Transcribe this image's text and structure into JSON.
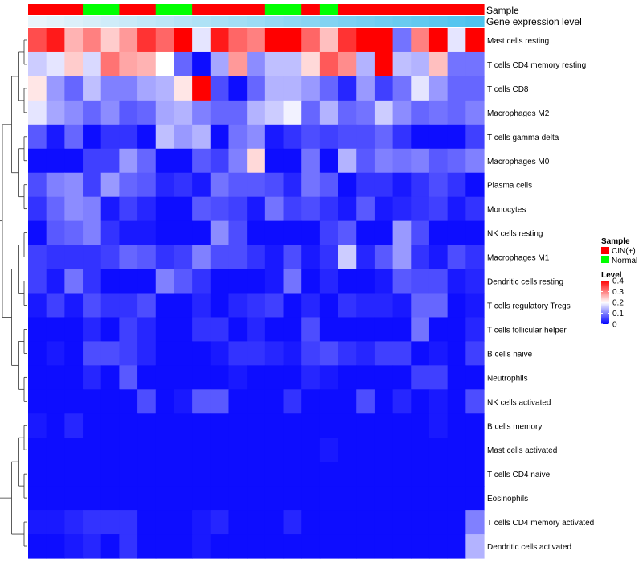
{
  "chart_data": {
    "type": "heatmap",
    "annotation_rows": [
      "Sample",
      "Gene expression level"
    ],
    "sample_groups": [
      "CIN(+)",
      "CIN(+)",
      "CIN(+)",
      "Normal",
      "Normal",
      "CIN(+)",
      "CIN(+)",
      "Normal",
      "Normal",
      "CIN(+)",
      "CIN(+)",
      "CIN(+)",
      "CIN(+)",
      "Normal",
      "Normal",
      "CIN(+)",
      "Normal",
      "CIN(+)",
      "CIN(+)",
      "CIN(+)",
      "CIN(+)",
      "CIN(+)",
      "CIN(+)",
      "CIN(+)",
      "CIN(+)"
    ],
    "expression_levels": [
      0.05,
      0.06,
      0.07,
      0.08,
      0.09,
      0.1,
      0.11,
      0.12,
      0.13,
      0.14,
      0.15,
      0.16,
      0.17,
      0.18,
      0.19,
      0.2,
      0.21,
      0.22,
      0.23,
      0.24,
      0.25,
      0.26,
      0.27,
      0.28,
      0.29
    ],
    "rows": [
      "Mast cells resting",
      "T cells CD4 memory resting",
      "T cells CD8",
      "Macrophages M2",
      "T cells gamma delta",
      "Macrophages M0",
      "Plasma cells",
      "Monocytes",
      "NK cells resting",
      "Macrophages M1",
      "Dendritic cells resting",
      "T cells regulatory  Tregs",
      "T cells follicular helper",
      "B cells naive",
      "Neutrophils",
      "NK cells activated",
      "B cells memory",
      "Mast cells activated",
      "T cells CD4 naive",
      "Eosinophils",
      "T cells CD4 memory activated",
      "Dendritic cells activated"
    ],
    "values": [
      [
        0.34,
        0.38,
        0.26,
        0.3,
        0.24,
        0.28,
        0.36,
        0.32,
        0.4,
        0.18,
        0.38,
        0.32,
        0.3,
        0.4,
        0.4,
        0.32,
        0.25,
        0.36,
        0.4,
        0.4,
        0.09,
        0.3,
        0.4,
        0.18,
        0.4
      ],
      [
        0.16,
        0.18,
        0.24,
        0.17,
        0.31,
        0.27,
        0.26,
        0.2,
        0.08,
        0.01,
        0.13,
        0.28,
        0.11,
        0.15,
        0.15,
        0.23,
        0.33,
        0.29,
        0.14,
        0.4,
        0.15,
        0.14,
        0.25,
        0.09,
        0.09
      ],
      [
        0.22,
        0.12,
        0.08,
        0.15,
        0.1,
        0.1,
        0.13,
        0.14,
        0.22,
        0.4,
        0.06,
        0.01,
        0.08,
        0.14,
        0.14,
        0.12,
        0.08,
        0.03,
        0.12,
        0.05,
        0.09,
        0.18,
        0.12,
        0.08,
        0.08
      ],
      [
        0.18,
        0.13,
        0.11,
        0.08,
        0.11,
        0.07,
        0.08,
        0.13,
        0.14,
        0.1,
        0.08,
        0.08,
        0.14,
        0.16,
        0.19,
        0.08,
        0.14,
        0.08,
        0.09,
        0.16,
        0.11,
        0.08,
        0.09,
        0.08,
        0.1
      ],
      [
        0.07,
        0.02,
        0.08,
        0.01,
        0.04,
        0.04,
        0.01,
        0.15,
        0.12,
        0.14,
        0.01,
        0.09,
        0.11,
        0.02,
        0.04,
        0.06,
        0.05,
        0.06,
        0.06,
        0.08,
        0.04,
        0.01,
        0.01,
        0.01,
        0.05
      ],
      [
        0.01,
        0.01,
        0.01,
        0.05,
        0.05,
        0.12,
        0.08,
        0.01,
        0.01,
        0.07,
        0.05,
        0.1,
        0.23,
        0.01,
        0.01,
        0.09,
        0.01,
        0.14,
        0.07,
        0.1,
        0.09,
        0.1,
        0.07,
        0.08,
        0.1
      ],
      [
        0.06,
        0.1,
        0.11,
        0.05,
        0.12,
        0.08,
        0.07,
        0.03,
        0.04,
        0.02,
        0.09,
        0.07,
        0.07,
        0.06,
        0.03,
        0.09,
        0.07,
        0.01,
        0.04,
        0.04,
        0.02,
        0.04,
        0.06,
        0.04,
        0.01
      ],
      [
        0.04,
        0.08,
        0.11,
        0.1,
        0.02,
        0.05,
        0.03,
        0.01,
        0.01,
        0.07,
        0.06,
        0.05,
        0.02,
        0.09,
        0.05,
        0.06,
        0.04,
        0.02,
        0.07,
        0.02,
        0.03,
        0.04,
        0.05,
        0.02,
        0.04
      ],
      [
        0.01,
        0.07,
        0.08,
        0.1,
        0.04,
        0.02,
        0.02,
        0.01,
        0.01,
        0.01,
        0.11,
        0.06,
        0.01,
        0.01,
        0.01,
        0.01,
        0.05,
        0.07,
        0.01,
        0.01,
        0.12,
        0.06,
        0.01,
        0.01,
        0.01
      ],
      [
        0.05,
        0.04,
        0.04,
        0.04,
        0.05,
        0.08,
        0.07,
        0.04,
        0.05,
        0.1,
        0.06,
        0.06,
        0.04,
        0.02,
        0.06,
        0.02,
        0.04,
        0.16,
        0.03,
        0.07,
        0.12,
        0.04,
        0.02,
        0.06,
        0.04
      ],
      [
        0.05,
        0.02,
        0.09,
        0.04,
        0.01,
        0.01,
        0.01,
        0.1,
        0.07,
        0.04,
        0.01,
        0.01,
        0.01,
        0.02,
        0.09,
        0.01,
        0.03,
        0.01,
        0.01,
        0.02,
        0.07,
        0.06,
        0.06,
        0.02,
        0.03
      ],
      [
        0.02,
        0.05,
        0.02,
        0.06,
        0.04,
        0.04,
        0.06,
        0.01,
        0.01,
        0.03,
        0.01,
        0.03,
        0.04,
        0.05,
        0.01,
        0.03,
        0.01,
        0.04,
        0.03,
        0.03,
        0.02,
        0.08,
        0.08,
        0.01,
        0.02
      ],
      [
        0.01,
        0.01,
        0.01,
        0.03,
        0.01,
        0.05,
        0.03,
        0.01,
        0.01,
        0.04,
        0.04,
        0.01,
        0.03,
        0.01,
        0.01,
        0.06,
        0.01,
        0.01,
        0.01,
        0.01,
        0.01,
        0.09,
        0.01,
        0.01,
        0.03
      ],
      [
        0.01,
        0.02,
        0.01,
        0.06,
        0.06,
        0.05,
        0.03,
        0.01,
        0.01,
        0.01,
        0.02,
        0.04,
        0.04,
        0.03,
        0.02,
        0.05,
        0.06,
        0.04,
        0.03,
        0.05,
        0.05,
        0.01,
        0.02,
        0.01,
        0.05
      ],
      [
        0.01,
        0.01,
        0.01,
        0.03,
        0.01,
        0.07,
        0.01,
        0.01,
        0.01,
        0.01,
        0.01,
        0.02,
        0.01,
        0.01,
        0.01,
        0.03,
        0.02,
        0.01,
        0.01,
        0.01,
        0.01,
        0.05,
        0.05,
        0.01,
        0.01
      ],
      [
        0.01,
        0.01,
        0.01,
        0.01,
        0.01,
        0.01,
        0.06,
        0.01,
        0.02,
        0.07,
        0.07,
        0.01,
        0.01,
        0.01,
        0.04,
        0.01,
        0.01,
        0.01,
        0.06,
        0.01,
        0.03,
        0.01,
        0.02,
        0.01,
        0.06
      ],
      [
        0.02,
        0.01,
        0.03,
        0.01,
        0.01,
        0.01,
        0.01,
        0.01,
        0.01,
        0.01,
        0.01,
        0.01,
        0.01,
        0.01,
        0.01,
        0.01,
        0.01,
        0.01,
        0.01,
        0.01,
        0.01,
        0.01,
        0.02,
        0.01,
        0.01
      ],
      [
        0.01,
        0.01,
        0.01,
        0.01,
        0.01,
        0.01,
        0.01,
        0.01,
        0.01,
        0.01,
        0.01,
        0.01,
        0.01,
        0.01,
        0.01,
        0.01,
        0.02,
        0.01,
        0.01,
        0.01,
        0.01,
        0.01,
        0.01,
        0.01,
        0.01
      ],
      [
        0.01,
        0.01,
        0.01,
        0.01,
        0.01,
        0.01,
        0.01,
        0.01,
        0.01,
        0.01,
        0.01,
        0.01,
        0.01,
        0.01,
        0.01,
        0.01,
        0.01,
        0.01,
        0.01,
        0.01,
        0.01,
        0.01,
        0.01,
        0.01,
        0.01
      ],
      [
        0.01,
        0.01,
        0.01,
        0.01,
        0.01,
        0.01,
        0.01,
        0.01,
        0.01,
        0.01,
        0.01,
        0.01,
        0.01,
        0.01,
        0.01,
        0.01,
        0.01,
        0.01,
        0.01,
        0.01,
        0.01,
        0.01,
        0.01,
        0.01,
        0.01
      ],
      [
        0.02,
        0.02,
        0.03,
        0.04,
        0.04,
        0.04,
        0.01,
        0.01,
        0.01,
        0.02,
        0.03,
        0.01,
        0.01,
        0.01,
        0.03,
        0.01,
        0.01,
        0.01,
        0.01,
        0.01,
        0.01,
        0.01,
        0.01,
        0.01,
        0.1
      ],
      [
        0.01,
        0.01,
        0.02,
        0.03,
        0.01,
        0.04,
        0.01,
        0.01,
        0.01,
        0.02,
        0.01,
        0.01,
        0.01,
        0.01,
        0.01,
        0.01,
        0.01,
        0.01,
        0.01,
        0.01,
        0.01,
        0.01,
        0.01,
        0.01,
        0.14
      ]
    ],
    "legend_sample": {
      "title": "Sample",
      "items": [
        {
          "label": "CIN(+)",
          "color": "#ff0000"
        },
        {
          "label": "Normal",
          "color": "#00ff00"
        }
      ]
    },
    "legend_level": {
      "title": "Level",
      "ticks": [
        0.4,
        0.3,
        0.2,
        0.1,
        0
      ],
      "range": [
        0,
        0.4
      ],
      "low_color": "#0000ff",
      "mid_color": "#ffffff",
      "high_color": "#ff0000"
    },
    "expression_bar_colors": {
      "low": "#e9f4fb",
      "high": "#4ec3ee"
    },
    "dendrogram": "row-clustered"
  }
}
